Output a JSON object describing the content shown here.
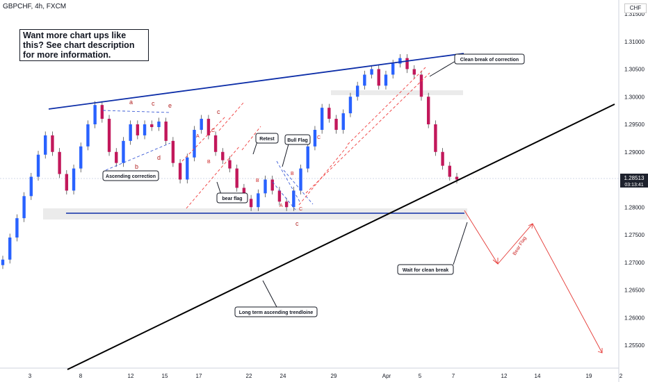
{
  "header": {
    "symbol": "GBPCHF, 4h, FXCM"
  },
  "callout": {
    "text": "Want more chart ups like this? See chart description for more information."
  },
  "axis": {
    "currency": "CHF"
  },
  "price_tag": {
    "value": "1.28513",
    "countdown": "03:13:41"
  },
  "colors": {
    "up": "#2962ff",
    "down": "#c2185b",
    "trend_blue": "#0d2ea8",
    "trend_black": "#000000",
    "dashed_red": "#ef3b3b"
  },
  "chart_data": {
    "type": "line",
    "title": "",
    "y_ticks": [
      "1.31500",
      "1.31000",
      "1.30500",
      "1.30000",
      "1.29500",
      "1.29000",
      "1.28500",
      "1.28000",
      "1.27500",
      "1.27000",
      "1.26500",
      "1.26000",
      "1.25500"
    ],
    "x_ticks": [
      "3",
      "8",
      "12",
      "15",
      "17",
      "22",
      "24",
      "29",
      "Apr",
      "5",
      "7",
      "12",
      "14",
      "19",
      "2"
    ],
    "ylim": [
      1.2495,
      1.3175
    ],
    "current_price": 1.28513,
    "series": [
      {
        "values": [
          1.2705,
          1.2745,
          1.278,
          1.282,
          1.2855,
          1.2895,
          1.293,
          1.29,
          1.286,
          1.283,
          1.287,
          1.291,
          1.295,
          1.2985,
          1.296,
          1.29,
          1.288,
          1.292,
          1.295,
          1.293,
          1.295,
          1.2945,
          1.2955,
          1.292,
          1.288,
          1.285,
          1.289,
          1.294,
          1.296,
          1.293,
          1.29,
          1.2885,
          1.287,
          1.2835,
          1.2815,
          1.28,
          1.2825,
          1.285,
          1.283,
          1.281,
          1.28,
          1.283,
          1.287,
          1.291,
          1.294,
          1.298,
          1.296,
          1.294,
          1.297,
          1.3,
          1.302,
          1.304,
          1.305,
          1.302,
          1.304,
          1.306,
          1.307,
          1.305,
          1.304,
          1.3,
          1.295,
          1.29,
          1.2875,
          1.2855,
          1.285
        ]
      }
    ],
    "annotations": [
      {
        "text": "Ascending correction"
      },
      {
        "text": "bear flag"
      },
      {
        "text": "Retest"
      },
      {
        "text": "Bull Flag"
      },
      {
        "text": "Clean break of correction"
      },
      {
        "text": "Wait for clean break"
      },
      {
        "text": "Long term ascending trendloine"
      },
      {
        "text": "Bear Flag"
      }
    ],
    "wave_labels": [
      "a",
      "b",
      "c",
      "d",
      "e",
      "A",
      "B",
      "C",
      "c",
      "A",
      "B",
      "C",
      "c",
      "A",
      "B",
      "C"
    ]
  }
}
